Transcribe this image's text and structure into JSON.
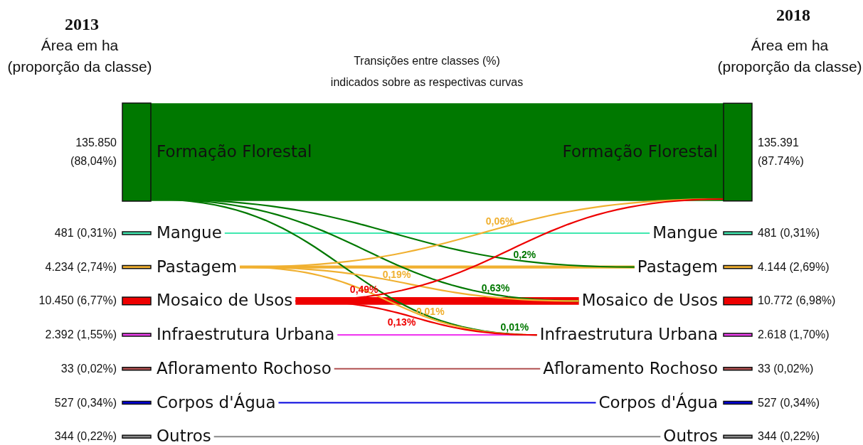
{
  "chart_data": {
    "type": "other",
    "title": "Transições entre classes (%)",
    "subtitle": "indicados sobre as respectivas curvas",
    "ylabel": "Área em ha\n(proporção da classe)",
    "y2label": "Área em ha\n(proporção da classe)",
    "categories": [
      "Formação Florestal",
      "Mangue",
      "Pastagem",
      "Mosaico de Usos",
      "Infraestrutura Urbana",
      "Afloramento Rochoso",
      "Corpos d'Água",
      "Outros"
    ],
    "colors": [
      "#007800",
      "#40e8b0",
      "#f0b030",
      "#ee0000",
      "#f040f0",
      "#b05050",
      "#0000dd",
      "#888888"
    ],
    "series": [
      {
        "name": "2013",
        "values": [
          135850,
          481,
          4234,
          10450,
          2392,
          33,
          527,
          344
        ],
        "value_labels": [
          "135.850 (88,04%)",
          "481 (0,31%)",
          "4.234 (2,74%)",
          "10.450 (6,77%)",
          "2.392 (1,55%)",
          "33 (0,02%)",
          "527 (0,34%)",
          "344 (0,22%)"
        ]
      },
      {
        "name": "2018",
        "values": [
          135391,
          481,
          4144,
          10772,
          2618,
          33,
          527,
          344
        ],
        "value_labels": [
          "135.391 (87.74%)",
          "481 (0,31%)",
          "4.144 (2,69%)",
          "10.772 (6,98%)",
          "2.618 (1,70%)",
          "33 (0,02%)",
          "527 (0,34%)",
          "344 (0,22%)"
        ]
      }
    ],
    "annotations": [
      {
        "text": "0,2%",
        "x": "Formação Florestal",
        "y": "Pastagem"
      },
      {
        "text": "0,63%",
        "x": "Formação Florestal",
        "y": "Mosaico de Usos"
      },
      {
        "text": "0,01%",
        "x": "Formação Florestal",
        "y": "Infraestrutura Urbana"
      },
      {
        "text": "0,06%",
        "x": "Pastagem",
        "y": "Formação Florestal"
      },
      {
        "text": "0,19%",
        "x": "Pastagem",
        "y": "Mosaico de Usos"
      },
      {
        "text": "0,01%",
        "x": "Pastagem",
        "y": "Infraestrutura Urbana"
      },
      {
        "text": "0,49%",
        "x": "Mosaico de Usos",
        "y": "Formação Florestal"
      },
      {
        "text": "0,13%",
        "x": "Mosaico de Usos",
        "y": "Infraestrutura Urbana"
      }
    ]
  }
}
